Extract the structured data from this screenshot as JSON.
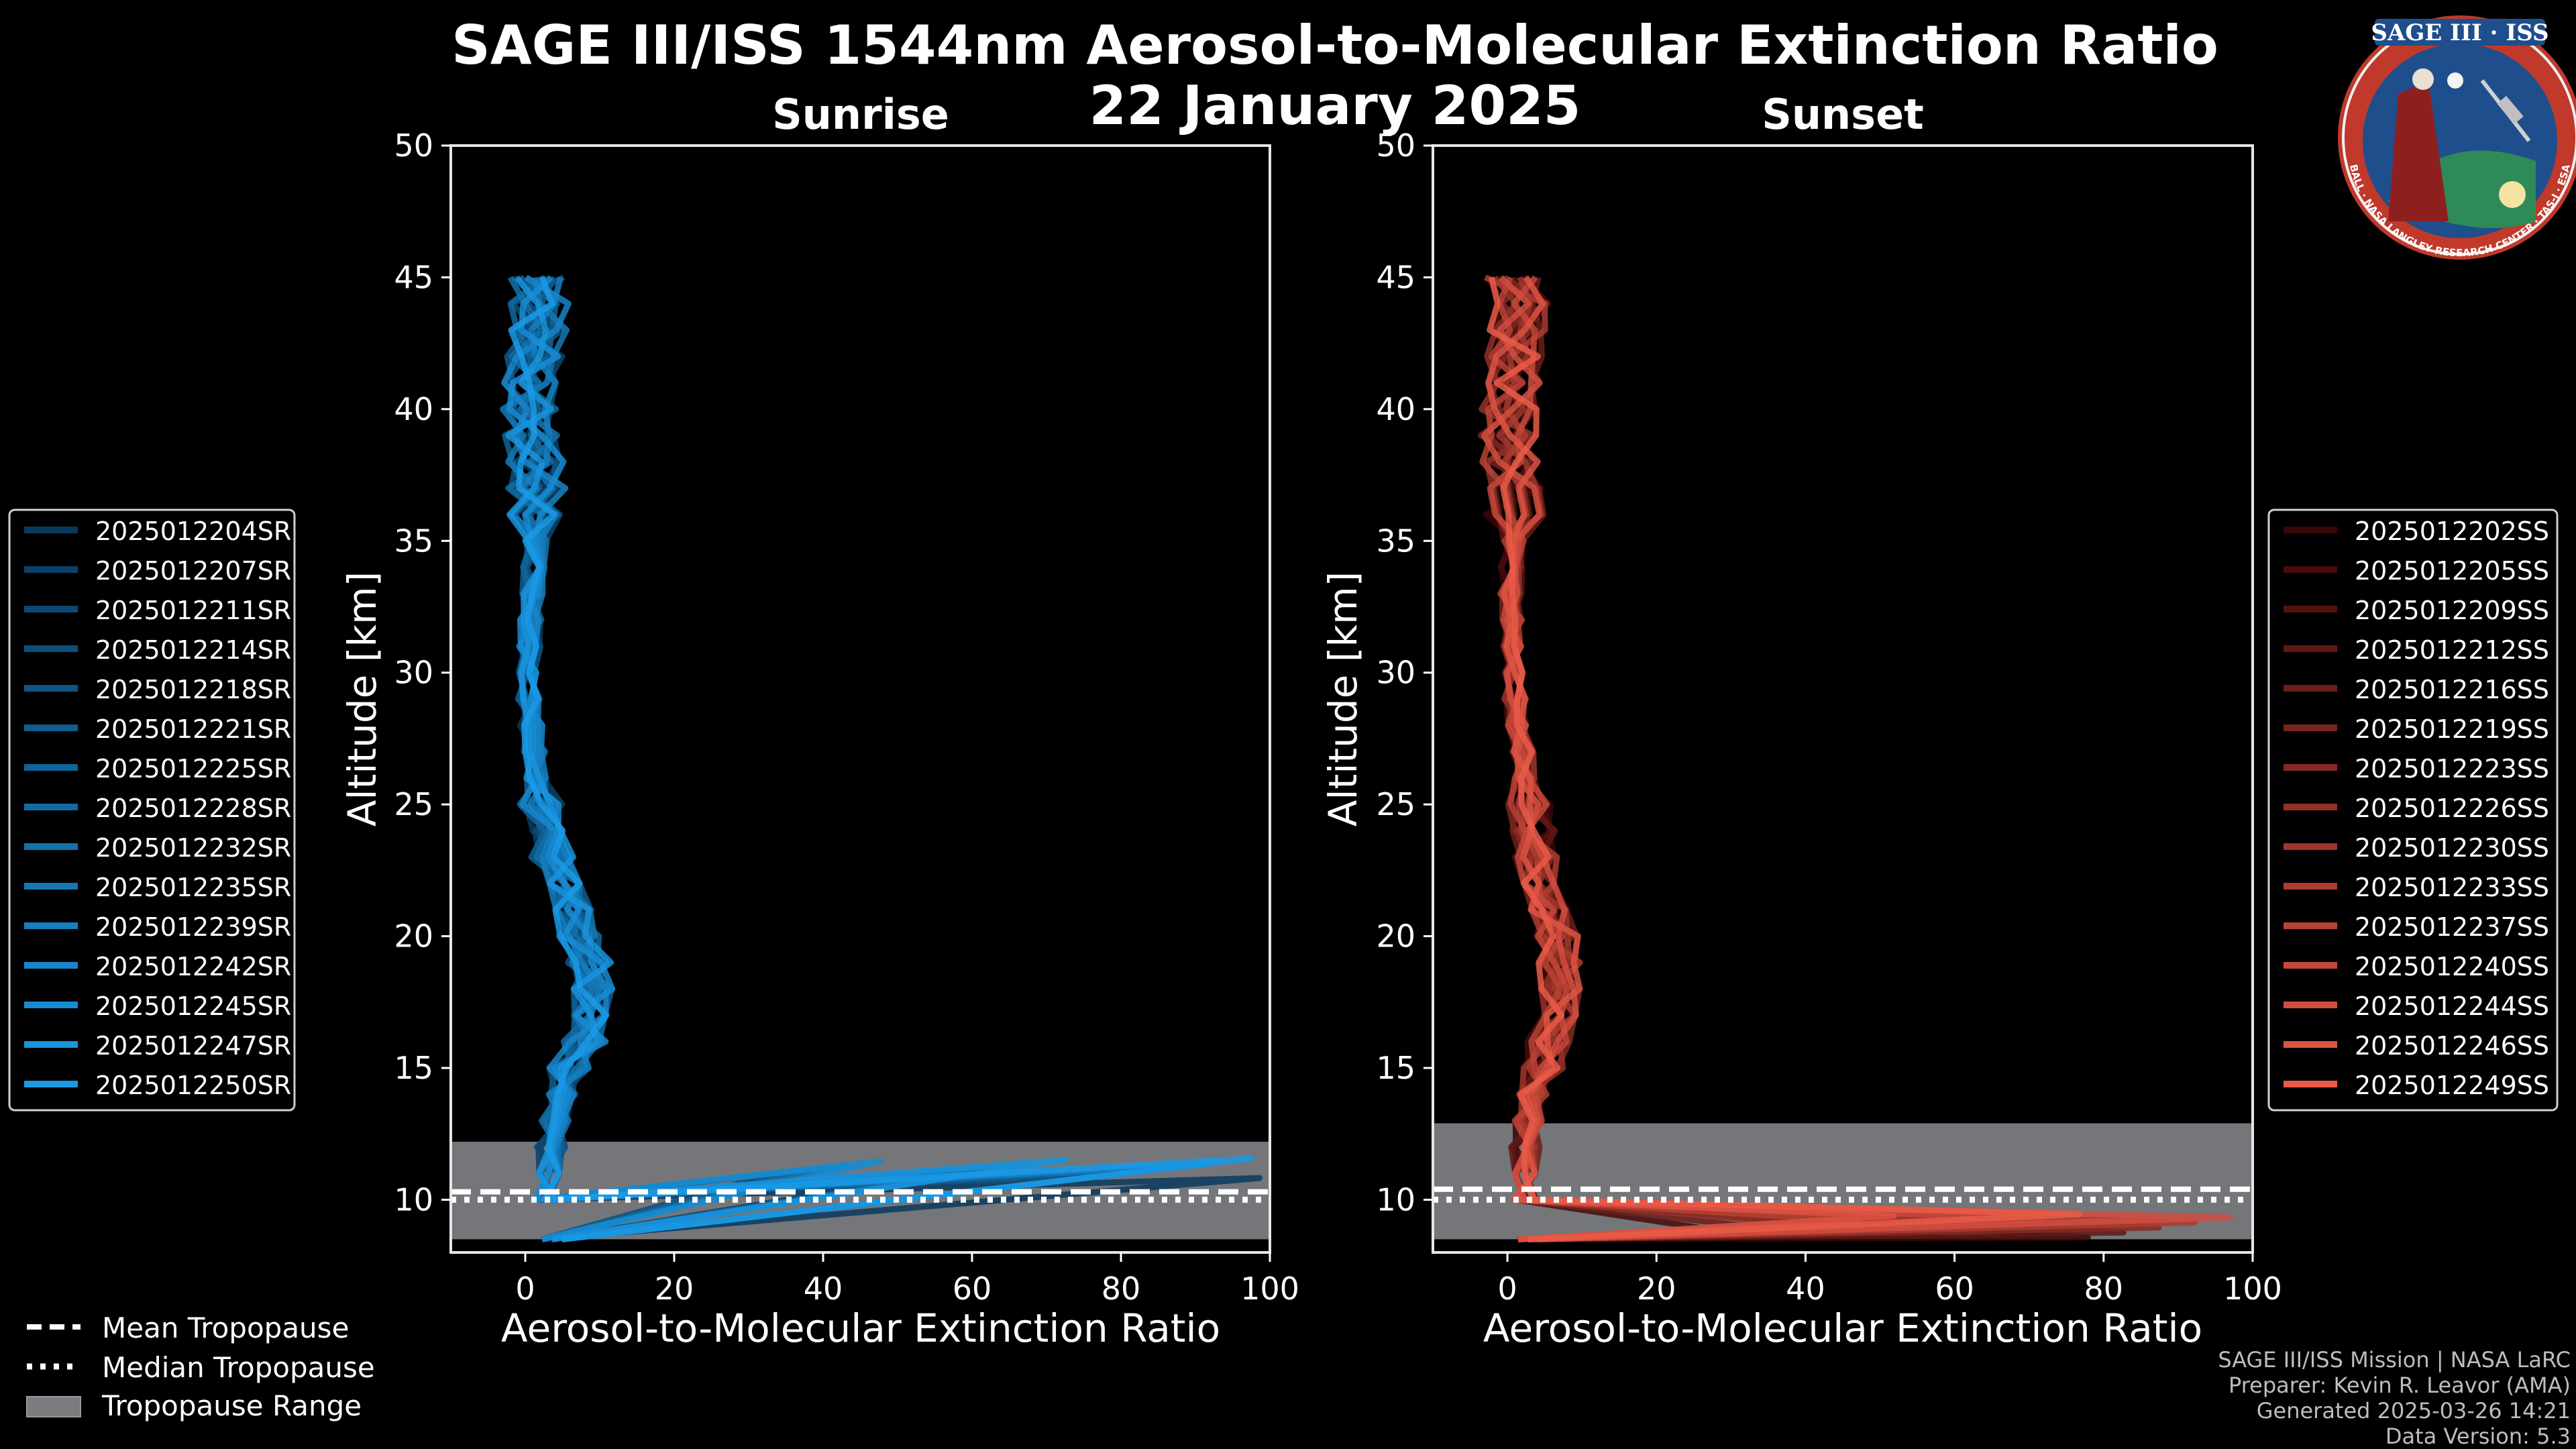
{
  "title_line1": "SAGE III/ISS 1544nm Aerosol-to-Molecular Extinction Ratio",
  "title_line2": "22 January 2025",
  "logo": {
    "name_text": "SAGE III · ISS",
    "ring_text": "BALL · NASA LANGLEY RESEARCH CENTER · TAS-I · ESA",
    "colors": {
      "ring": "#c0392b",
      "field": "#1f4e8c"
    }
  },
  "footer": [
    "SAGE III/ISS Mission | NASA LaRC",
    "Preparer: Kevin R. Leavor (AMA)",
    "Generated 2025-03-26 14:21",
    "Data Version: 5.3"
  ],
  "bottom_legend": [
    {
      "label": "Mean Tropopause",
      "style": "dashed"
    },
    {
      "label": "Median Tropopause",
      "style": "dotted"
    },
    {
      "label": "Tropopause Range",
      "style": "patch"
    }
  ],
  "chart_data": [
    {
      "type": "line",
      "panel": "sunrise",
      "title": "Sunrise",
      "xlabel": "Aerosol-to-Molecular Extinction Ratio",
      "ylabel": "Altitude [km]",
      "xlim": [
        -10,
        100
      ],
      "ylim": [
        8,
        50
      ],
      "xticks": [
        0,
        20,
        40,
        60,
        80,
        100
      ],
      "yticks": [
        10,
        15,
        20,
        25,
        30,
        35,
        40,
        45
      ],
      "grid": false,
      "legend_position": "left",
      "color_start": "#0a3a5e",
      "color_end": "#1a9ae6",
      "tropopause": {
        "mean": 10.3,
        "median": 10.0,
        "range": [
          8.5,
          12.2
        ]
      },
      "profile": {
        "altitudes": [
          8.5,
          9,
          10,
          11,
          12,
          13,
          14,
          15,
          16,
          17,
          18,
          19,
          20,
          21,
          22,
          23,
          24,
          25,
          26,
          27,
          28,
          29,
          30,
          31,
          32,
          33,
          34,
          35,
          36,
          37,
          38,
          39,
          40,
          41,
          42,
          43,
          44,
          45
        ],
        "values": [
          4,
          3.5,
          3,
          3,
          3.5,
          4,
          5,
          6,
          8,
          9,
          9,
          8.5,
          7,
          6,
          5,
          3.5,
          2.5,
          2,
          1.5,
          1.2,
          0.8,
          0.5,
          0.5,
          0.6,
          0.8,
          1,
          1.2,
          1.5,
          1.5,
          1.5,
          1.2,
          0.8,
          0.5,
          0.5,
          1,
          2,
          2,
          1.5
        ]
      },
      "series": [
        {
          "name": "2025012204SR"
        },
        {
          "name": "2025012207SR"
        },
        {
          "name": "2025012211SR"
        },
        {
          "name": "2025012214SR"
        },
        {
          "name": "2025012218SR"
        },
        {
          "name": "2025012221SR"
        },
        {
          "name": "2025012225SR"
        },
        {
          "name": "2025012228SR"
        },
        {
          "name": "2025012232SR"
        },
        {
          "name": "2025012235SR"
        },
        {
          "name": "2025012239SR"
        },
        {
          "name": "2025012242SR"
        },
        {
          "name": "2025012245SR"
        },
        {
          "name": "2025012247SR"
        },
        {
          "name": "2025012250SR"
        }
      ]
    },
    {
      "type": "line",
      "panel": "sunset",
      "title": "Sunset",
      "xlabel": "Aerosol-to-Molecular Extinction Ratio",
      "ylabel": "Altitude [km]",
      "xlim": [
        -10,
        100
      ],
      "ylim": [
        8,
        50
      ],
      "xticks": [
        0,
        20,
        40,
        60,
        80,
        100
      ],
      "yticks": [
        10,
        15,
        20,
        25,
        30,
        35,
        40,
        45
      ],
      "grid": false,
      "legend_position": "right",
      "color_start": "#3a0606",
      "color_end": "#ea5a48",
      "tropopause": {
        "mean": 10.4,
        "median": 10.0,
        "range": [
          8.5,
          12.9
        ]
      },
      "profile": {
        "altitudes": [
          8.5,
          9,
          10,
          11,
          12,
          13,
          14,
          15,
          16,
          17,
          18,
          19,
          20,
          21,
          22,
          23,
          24,
          25,
          26,
          27,
          28,
          29,
          30,
          31,
          32,
          33,
          34,
          35,
          36,
          37,
          38,
          39,
          40,
          41,
          42,
          43,
          44,
          45
        ],
        "values": [
          3,
          2.5,
          2,
          2,
          2.5,
          3,
          3.5,
          4.5,
          5.5,
          6.5,
          7,
          7,
          6.5,
          6,
          5,
          4,
          3.5,
          3,
          2.5,
          2,
          1.5,
          1,
          0.8,
          0.6,
          0.5,
          0.5,
          0.5,
          0.8,
          1,
          0.8,
          0.5,
          0.3,
          0.3,
          0.5,
          1,
          1.5,
          1.5,
          1
        ]
      },
      "series": [
        {
          "name": "2025012202SS"
        },
        {
          "name": "2025012205SS"
        },
        {
          "name": "2025012209SS"
        },
        {
          "name": "2025012212SS"
        },
        {
          "name": "2025012216SS"
        },
        {
          "name": "2025012219SS"
        },
        {
          "name": "2025012223SS"
        },
        {
          "name": "2025012226SS"
        },
        {
          "name": "2025012230SS"
        },
        {
          "name": "2025012233SS"
        },
        {
          "name": "2025012237SS"
        },
        {
          "name": "2025012240SS"
        },
        {
          "name": "2025012244SS"
        },
        {
          "name": "2025012246SS"
        },
        {
          "name": "2025012249SS"
        }
      ]
    }
  ]
}
